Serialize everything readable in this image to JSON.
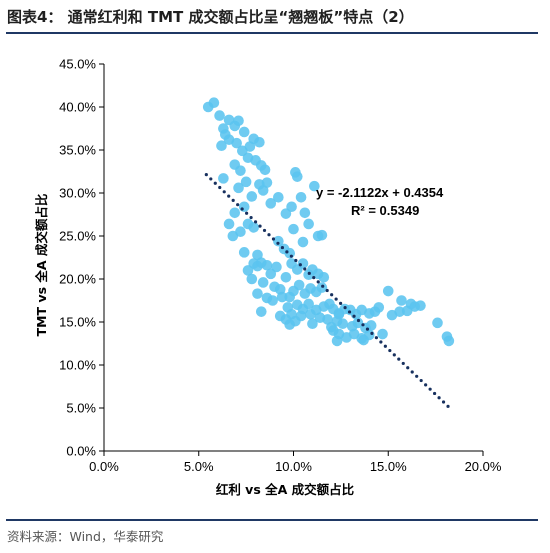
{
  "header": {
    "title": "图表4：  通常红利和 TMT 成交额占比呈“翘翘板”特点（2）"
  },
  "footer": {
    "source": "资料来源：Wind，华泰研究"
  },
  "colors": {
    "point": "#5bc4ef",
    "trendline": "#17305e",
    "rule": "#1f3864"
  },
  "chart_data": {
    "type": "scatter",
    "xlabel": "红利 vs 全A 成交额占比",
    "ylabel": "TMT vs 全A 成交额占比",
    "xlim": [
      0,
      20
    ],
    "ylim": [
      0,
      45
    ],
    "x_ticks": [
      "0.0%",
      "5.0%",
      "10.0%",
      "15.0%",
      "20.0%"
    ],
    "y_ticks": [
      "0.0%",
      "5.0%",
      "10.0%",
      "15.0%",
      "20.0%",
      "25.0%",
      "30.0%",
      "35.0%",
      "40.0%",
      "45.0%"
    ],
    "trendline": {
      "equation": "y = -2.1122x + 0.4354",
      "r_squared": "R² = 0.5349",
      "slope": -2.1122,
      "intercept": 0.4354,
      "x_range": [
        5.4,
        18.3
      ]
    },
    "points": [
      [
        5.5,
        40
      ],
      [
        5.8,
        40.5
      ],
      [
        6.1,
        39
      ],
      [
        6.3,
        37.5
      ],
      [
        6.6,
        38.5
      ],
      [
        6.4,
        36.8
      ],
      [
        6.9,
        37.8
      ],
      [
        7.1,
        38.4
      ],
      [
        6.2,
        35.5
      ],
      [
        6.6,
        36.2
      ],
      [
        7.4,
        37.1
      ],
      [
        7.0,
        35.8
      ],
      [
        7.3,
        34.9
      ],
      [
        7.7,
        35.4
      ],
      [
        7.9,
        36.3
      ],
      [
        8.2,
        35.9
      ],
      [
        7.6,
        34.1
      ],
      [
        6.9,
        33.3
      ],
      [
        7.2,
        32.6
      ],
      [
        8.0,
        33.8
      ],
      [
        8.3,
        33.2
      ],
      [
        8.5,
        32.7
      ],
      [
        7.5,
        31.3
      ],
      [
        7.1,
        30.6
      ],
      [
        7.8,
        29.6
      ],
      [
        8.2,
        31.0
      ],
      [
        8.6,
        31.2
      ],
      [
        6.3,
        31.7
      ],
      [
        8.4,
        30.3
      ],
      [
        7.4,
        28.4
      ],
      [
        6.9,
        27.7
      ],
      [
        7.6,
        26.4
      ],
      [
        7.2,
        25.5
      ],
      [
        6.8,
        25.0
      ],
      [
        6.6,
        26.4
      ],
      [
        7.9,
        26.0
      ],
      [
        8.8,
        28.8
      ],
      [
        9.2,
        29.5
      ],
      [
        9.6,
        27.6
      ],
      [
        9.9,
        28.4
      ],
      [
        10.1,
        32.4
      ],
      [
        10.2,
        31.9
      ],
      [
        10.4,
        29.5
      ],
      [
        10.0,
        25.8
      ],
      [
        10.6,
        27.7
      ],
      [
        10.8,
        26.4
      ],
      [
        11.1,
        30.8
      ],
      [
        11.3,
        25.0
      ],
      [
        10.5,
        24.3
      ],
      [
        11.5,
        25.1
      ],
      [
        9.2,
        24.4
      ],
      [
        9.5,
        23.5
      ],
      [
        9.8,
        23.0
      ],
      [
        7.4,
        23.1
      ],
      [
        8.1,
        22.8
      ],
      [
        8.6,
        21.6
      ],
      [
        8.1,
        21.5
      ],
      [
        7.9,
        21.8
      ],
      [
        7.6,
        21.0
      ],
      [
        8.3,
        21.9
      ],
      [
        8.8,
        20.6
      ],
      [
        9.1,
        21.4
      ],
      [
        9.6,
        20.2
      ],
      [
        9.9,
        21.8
      ],
      [
        10.2,
        21.1
      ],
      [
        10.5,
        21.8
      ],
      [
        10.8,
        20.5
      ],
      [
        11.0,
        21.1
      ],
      [
        11.3,
        20.6
      ],
      [
        11.6,
        20.2
      ],
      [
        7.8,
        20.0
      ],
      [
        8.4,
        19.6
      ],
      [
        9.0,
        19.1
      ],
      [
        9.3,
        18.8
      ],
      [
        10.0,
        18.6
      ],
      [
        10.3,
        19.3
      ],
      [
        10.6,
        18.3
      ],
      [
        10.9,
        18.9
      ],
      [
        11.2,
        18.5
      ],
      [
        11.5,
        19.0
      ],
      [
        8.1,
        18.3
      ],
      [
        8.6,
        17.8
      ],
      [
        8.9,
        17.5
      ],
      [
        9.4,
        17.9
      ],
      [
        9.7,
        16.7
      ],
      [
        9.8,
        17.9
      ],
      [
        10.2,
        17.0
      ],
      [
        10.5,
        16.5
      ],
      [
        10.8,
        17.1
      ],
      [
        11.2,
        16.4
      ],
      [
        11.6,
        16.8
      ],
      [
        11.9,
        17.1
      ],
      [
        12.1,
        16.5
      ],
      [
        12.4,
        16.0
      ],
      [
        12.7,
        16.5
      ],
      [
        13.0,
        16.4
      ],
      [
        13.3,
        15.9
      ],
      [
        13.6,
        16.4
      ],
      [
        14.0,
        16.0
      ],
      [
        14.3,
        16.2
      ],
      [
        8.3,
        16.2
      ],
      [
        9.3,
        15.7
      ],
      [
        9.6,
        15.3
      ],
      [
        9.9,
        15.9
      ],
      [
        10.4,
        15.7
      ],
      [
        10.9,
        15.9
      ],
      [
        11.4,
        15.5
      ],
      [
        11.8,
        15.3
      ],
      [
        12.3,
        15.1
      ],
      [
        12.6,
        14.8
      ],
      [
        13.1,
        14.5
      ],
      [
        13.4,
        14.9
      ],
      [
        13.8,
        14.3
      ],
      [
        14.1,
        14.6
      ],
      [
        9.8,
        14.7
      ],
      [
        10.1,
        15.1
      ],
      [
        11.0,
        14.8
      ],
      [
        12.0,
        14.4
      ],
      [
        12.4,
        13.6
      ],
      [
        12.8,
        13.2
      ],
      [
        13.2,
        13.6
      ],
      [
        13.6,
        13.1
      ],
      [
        14.0,
        13.5
      ],
      [
        12.3,
        12.8
      ],
      [
        13.7,
        12.9
      ],
      [
        14.7,
        13.6
      ],
      [
        15.2,
        15.8
      ],
      [
        15.6,
        16.2
      ],
      [
        16.0,
        16.3
      ],
      [
        16.4,
        16.8
      ],
      [
        14.5,
        16.7
      ],
      [
        15.0,
        18.6
      ],
      [
        15.7,
        17.5
      ],
      [
        16.2,
        17.1
      ],
      [
        16.7,
        16.9
      ],
      [
        17.6,
        14.9
      ],
      [
        18.1,
        13.3
      ],
      [
        18.2,
        12.8
      ],
      [
        12.4,
        15.9
      ],
      [
        12.1,
        14.0
      ]
    ]
  }
}
